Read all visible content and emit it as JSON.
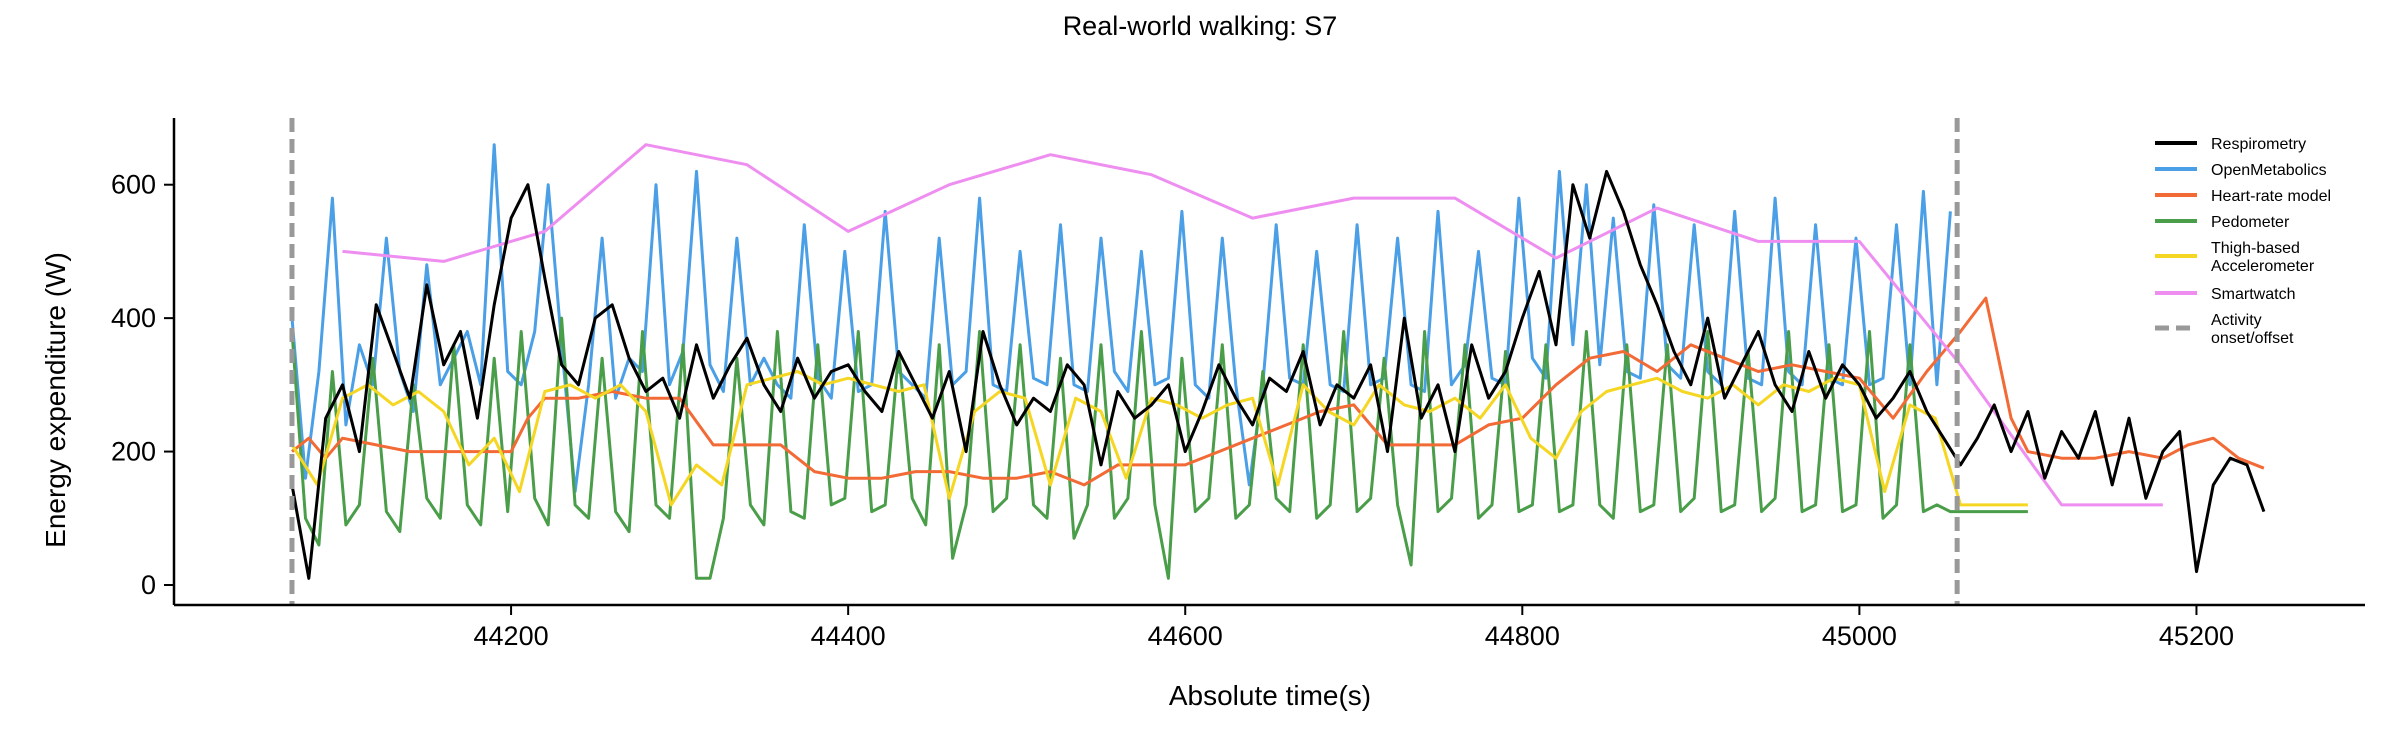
{
  "chart_data": {
    "type": "line",
    "title": "Real-world walking: S7",
    "xlabel": "Absolute time(s)",
    "ylabel": "Energy expenditure (W)",
    "xlim": [
      44000,
      45300
    ],
    "ylim": [
      -30,
      700
    ],
    "xticks": [
      44200,
      44400,
      44600,
      44800,
      45000,
      45200
    ],
    "yticks": [
      0,
      200,
      400,
      600
    ],
    "grid": false,
    "legend_position": "top-right",
    "vlines": [
      44070,
      45058
    ],
    "series": [
      {
        "name": "Respirometry",
        "color": "#000000",
        "x": [
          44070,
          44080,
          44090,
          44100,
          44110,
          44120,
          44130,
          44140,
          44150,
          44160,
          44170,
          44180,
          44190,
          44200,
          44210,
          44220,
          44230,
          44240,
          44250,
          44260,
          44270,
          44280,
          44290,
          44300,
          44310,
          44320,
          44330,
          44340,
          44350,
          44360,
          44370,
          44380,
          44390,
          44400,
          44410,
          44420,
          44430,
          44440,
          44450,
          44460,
          44470,
          44480,
          44490,
          44500,
          44510,
          44520,
          44530,
          44540,
          44550,
          44560,
          44570,
          44580,
          44590,
          44600,
          44610,
          44620,
          44630,
          44640,
          44650,
          44660,
          44670,
          44680,
          44690,
          44700,
          44710,
          44720,
          44730,
          44740,
          44750,
          44760,
          44770,
          44780,
          44790,
          44800,
          44810,
          44820,
          44830,
          44840,
          44850,
          44860,
          44870,
          44880,
          44890,
          44900,
          44910,
          44920,
          44930,
          44940,
          44950,
          44960,
          44970,
          44980,
          44990,
          45000,
          45010,
          45020,
          45030,
          45040,
          45050,
          45060,
          45070,
          45080,
          45090,
          45100,
          45110,
          45120,
          45130,
          45140,
          45150,
          45160,
          45170,
          45180,
          45190,
          45200,
          45210,
          45220,
          45230,
          45240
        ],
        "values": [
          150,
          10,
          250,
          300,
          200,
          420,
          350,
          280,
          450,
          330,
          380,
          250,
          420,
          550,
          600,
          460,
          330,
          300,
          400,
          420,
          340,
          290,
          310,
          250,
          360,
          280,
          330,
          370,
          300,
          260,
          340,
          280,
          320,
          330,
          290,
          260,
          350,
          300,
          250,
          320,
          200,
          380,
          300,
          240,
          280,
          260,
          330,
          300,
          180,
          290,
          250,
          270,
          300,
          200,
          260,
          330,
          280,
          240,
          310,
          290,
          350,
          240,
          300,
          280,
          330,
          200,
          400,
          250,
          300,
          200,
          360,
          280,
          320,
          400,
          470,
          360,
          600,
          520,
          620,
          560,
          480,
          420,
          350,
          300,
          400,
          280,
          330,
          380,
          300,
          260,
          350,
          280,
          330,
          300,
          250,
          280,
          320,
          260,
          220,
          180,
          220,
          270,
          200,
          260,
          160,
          230,
          190,
          260,
          150,
          250,
          130,
          200,
          230,
          20,
          150,
          190,
          180,
          110
        ]
      },
      {
        "name": "OpenMetabolics",
        "color": "#4a9fe6",
        "x": [
          44070,
          44078,
          44086,
          44094,
          44102,
          44110,
          44118,
          44126,
          44134,
          44142,
          44150,
          44158,
          44166,
          44174,
          44182,
          44190,
          44198,
          44206,
          44214,
          44222,
          44230,
          44238,
          44246,
          44254,
          44262,
          44270,
          44278,
          44286,
          44294,
          44302,
          44310,
          44318,
          44326,
          44334,
          44342,
          44350,
          44358,
          44366,
          44374,
          44382,
          44390,
          44398,
          44406,
          44414,
          44422,
          44430,
          44438,
          44446,
          44454,
          44462,
          44470,
          44478,
          44486,
          44494,
          44502,
          44510,
          44518,
          44526,
          44534,
          44542,
          44550,
          44558,
          44566,
          44574,
          44582,
          44590,
          44598,
          44606,
          44614,
          44622,
          44630,
          44638,
          44646,
          44654,
          44662,
          44670,
          44678,
          44686,
          44694,
          44702,
          44710,
          44718,
          44726,
          44734,
          44742,
          44750,
          44758,
          44766,
          44774,
          44782,
          44790,
          44798,
          44806,
          44814,
          44822,
          44830,
          44838,
          44846,
          44854,
          44862,
          44870,
          44878,
          44886,
          44894,
          44902,
          44910,
          44918,
          44926,
          44934,
          44942,
          44950,
          44958,
          44966,
          44974,
          44982,
          44990,
          44998,
          45006,
          45014,
          45022,
          45030,
          45038,
          45046,
          45054
        ],
        "values": [
          400,
          160,
          320,
          580,
          240,
          360,
          300,
          520,
          320,
          260,
          480,
          300,
          340,
          380,
          300,
          660,
          320,
          300,
          380,
          600,
          360,
          140,
          300,
          520,
          280,
          340,
          320,
          600,
          300,
          350,
          620,
          330,
          290,
          520,
          300,
          340,
          300,
          280,
          540,
          310,
          280,
          500,
          290,
          300,
          560,
          320,
          300,
          280,
          520,
          300,
          320,
          580,
          300,
          290,
          500,
          310,
          300,
          540,
          300,
          290,
          520,
          320,
          290,
          500,
          300,
          310,
          560,
          300,
          280,
          520,
          300,
          150,
          300,
          540,
          310,
          300,
          500,
          300,
          290,
          540,
          300,
          310,
          520,
          300,
          290,
          560,
          300,
          330,
          500,
          310,
          300,
          580,
          340,
          310,
          620,
          360,
          600,
          330,
          550,
          320,
          310,
          570,
          330,
          310,
          540,
          320,
          300,
          560,
          310,
          300,
          580,
          320,
          300,
          540,
          310,
          300,
          520,
          300,
          310,
          540,
          300,
          590,
          300,
          560
        ],
        "stray_note": ""
      },
      {
        "name": "Heart-rate model",
        "color": "#f26a35",
        "x": [
          44070,
          44080,
          44090,
          44100,
          44120,
          44140,
          44160,
          44180,
          44200,
          44210,
          44220,
          44240,
          44260,
          44280,
          44300,
          44320,
          44340,
          44360,
          44380,
          44400,
          44420,
          44440,
          44460,
          44480,
          44500,
          44520,
          44540,
          44560,
          44580,
          44600,
          44620,
          44640,
          44660,
          44680,
          44700,
          44720,
          44740,
          44760,
          44780,
          44800,
          44820,
          44840,
          44860,
          44880,
          44900,
          44920,
          44940,
          44960,
          44980,
          45000,
          45020,
          45040,
          45060,
          45075,
          45090,
          45100,
          45120,
          45140,
          45160,
          45180,
          45195,
          45210,
          45225,
          45240
        ],
        "values": [
          200,
          220,
          190,
          220,
          210,
          200,
          200,
          200,
          200,
          250,
          280,
          280,
          290,
          280,
          280,
          210,
          210,
          210,
          170,
          160,
          160,
          170,
          170,
          160,
          160,
          170,
          150,
          180,
          180,
          180,
          200,
          220,
          240,
          260,
          270,
          210,
          210,
          210,
          240,
          250,
          300,
          340,
          350,
          320,
          360,
          340,
          320,
          330,
          320,
          310,
          250,
          320,
          380,
          430,
          250,
          200,
          190,
          190,
          200,
          190,
          210,
          220,
          190,
          175
        ]
      },
      {
        "name": "Pedometer",
        "color": "#4a9e4a",
        "x": [
          44070,
          44078,
          44086,
          44094,
          44102,
          44110,
          44118,
          44126,
          44134,
          44142,
          44150,
          44158,
          44166,
          44174,
          44182,
          44190,
          44198,
          44206,
          44214,
          44222,
          44230,
          44238,
          44246,
          44254,
          44262,
          44270,
          44278,
          44286,
          44294,
          44302,
          44310,
          44318,
          44326,
          44334,
          44342,
          44350,
          44358,
          44366,
          44374,
          44382,
          44390,
          44398,
          44406,
          44414,
          44422,
          44430,
          44438,
          44446,
          44454,
          44462,
          44470,
          44478,
          44486,
          44494,
          44502,
          44510,
          44518,
          44526,
          44534,
          44542,
          44550,
          44558,
          44566,
          44574,
          44582,
          44590,
          44598,
          44606,
          44614,
          44622,
          44630,
          44638,
          44646,
          44654,
          44662,
          44670,
          44678,
          44686,
          44694,
          44702,
          44710,
          44718,
          44726,
          44734,
          44742,
          44750,
          44758,
          44766,
          44774,
          44782,
          44790,
          44798,
          44806,
          44814,
          44822,
          44830,
          44838,
          44846,
          44854,
          44862,
          44870,
          44878,
          44886,
          44894,
          44902,
          44910,
          44918,
          44926,
          44934,
          44942,
          44950,
          44958,
          44966,
          44974,
          44982,
          44990,
          44998,
          45006,
          45014,
          45022,
          45030,
          45038,
          45046,
          45054,
          45060,
          45080,
          45100
        ],
        "values": [
          380,
          100,
          60,
          320,
          90,
          120,
          340,
          110,
          80,
          300,
          130,
          100,
          360,
          120,
          90,
          340,
          110,
          380,
          130,
          90,
          400,
          120,
          100,
          340,
          110,
          80,
          380,
          120,
          100,
          360,
          10,
          10,
          100,
          340,
          120,
          90,
          380,
          110,
          100,
          360,
          120,
          130,
          380,
          110,
          120,
          350,
          130,
          90,
          360,
          40,
          120,
          380,
          110,
          130,
          360,
          120,
          100,
          340,
          70,
          120,
          360,
          100,
          130,
          380,
          120,
          10,
          340,
          110,
          130,
          360,
          100,
          120,
          320,
          130,
          110,
          360,
          100,
          120,
          380,
          110,
          130,
          340,
          120,
          30,
          380,
          110,
          130,
          360,
          100,
          120,
          350,
          110,
          120,
          360,
          110,
          120,
          380,
          120,
          100,
          360,
          110,
          120,
          360,
          110,
          130,
          380,
          110,
          120,
          350,
          110,
          130,
          380,
          110,
          120,
          360,
          110,
          120,
          380,
          100,
          120,
          360,
          110,
          120,
          110,
          110,
          110,
          110
        ]
      },
      {
        "name": "Thigh-based Accelerometer",
        "color": "#f5d623",
        "x": [
          44070,
          44085,
          44100,
          44115,
          44130,
          44145,
          44160,
          44175,
          44190,
          44205,
          44220,
          44235,
          44250,
          44265,
          44280,
          44295,
          44310,
          44325,
          44340,
          44355,
          44370,
          44385,
          44400,
          44415,
          44430,
          44445,
          44460,
          44475,
          44490,
          44505,
          44520,
          44535,
          44550,
          44565,
          44580,
          44595,
          44610,
          44625,
          44640,
          44655,
          44670,
          44685,
          44700,
          44715,
          44730,
          44745,
          44760,
          44775,
          44790,
          44805,
          44820,
          44835,
          44850,
          44865,
          44880,
          44895,
          44910,
          44925,
          44940,
          44955,
          44970,
          44985,
          45000,
          45015,
          45030,
          45045,
          45060,
          45080,
          45100
        ],
        "values": [
          210,
          150,
          280,
          300,
          270,
          290,
          260,
          180,
          220,
          140,
          290,
          300,
          280,
          300,
          260,
          120,
          180,
          150,
          300,
          310,
          320,
          300,
          310,
          300,
          290,
          300,
          130,
          260,
          290,
          280,
          150,
          280,
          260,
          160,
          280,
          270,
          250,
          270,
          280,
          150,
          300,
          260,
          240,
          300,
          270,
          260,
          280,
          250,
          300,
          220,
          190,
          260,
          290,
          300,
          310,
          290,
          280,
          300,
          270,
          300,
          290,
          310,
          300,
          140,
          270,
          250,
          120,
          120,
          120
        ]
      },
      {
        "name": "Smartwatch",
        "color": "#ee8ef0",
        "x": [
          44100,
          44160,
          44220,
          44280,
          44340,
          44400,
          44460,
          44520,
          44580,
          44640,
          44700,
          44760,
          44820,
          44880,
          44940,
          45000,
          45060,
          45120,
          45180
        ],
        "values": [
          500,
          485,
          530,
          660,
          630,
          530,
          600,
          645,
          615,
          550,
          580,
          580,
          490,
          565,
          515,
          515,
          330,
          120,
          120
        ]
      }
    ],
    "vline_label": "Activity onset/offset",
    "legend": [
      "Respirometry",
      "OpenMetabolics",
      "Heart-rate model",
      "Pedometer",
      "Thigh-based Accelerometer",
      "Smartwatch",
      "Activity onset/offset"
    ]
  }
}
